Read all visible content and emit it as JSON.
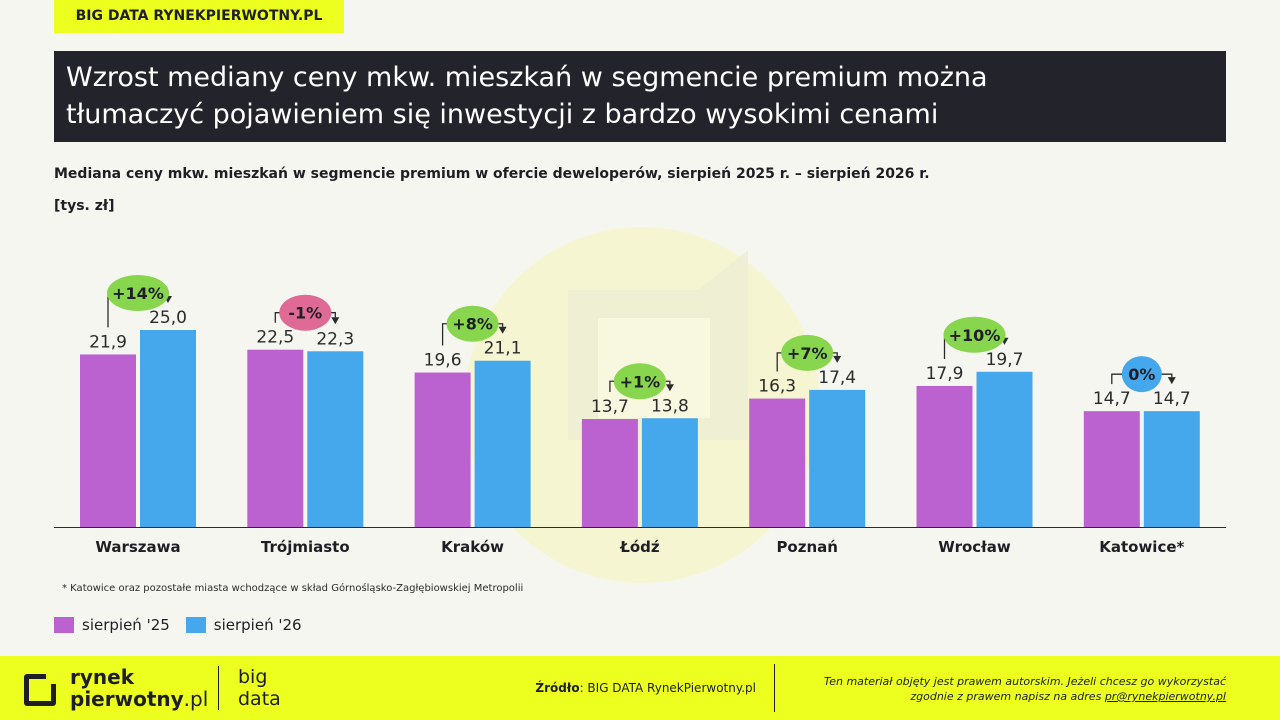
{
  "header": {
    "badge": "BIG DATA RYNEKPIERWOTNY.PL",
    "title_line1": "Wzrost mediany ceny mkw. mieszkań w segmencie premium można",
    "title_line2": "tłumaczyć pojawieniem się inwestycji z bardzo wysokimi cenami"
  },
  "chart_data": {
    "type": "bar",
    "title": "Mediana ceny mkw. mieszkań w segmencie premium w ofercie deweloperów, sierpień 2025 r. – sierpień 2026 r.",
    "unit": "[tys. zł]",
    "categories": [
      "Warszawa",
      "Trójmiasto",
      "Kraków",
      "Łódź",
      "Poznań",
      "Wrocław",
      "Katowice*"
    ],
    "series": [
      {
        "name": "sierpień '25",
        "values": [
          21.9,
          22.5,
          19.6,
          13.7,
          16.3,
          17.9,
          14.7
        ],
        "labels": [
          "21,9",
          "22,5",
          "19,6",
          "13,7",
          "16,3",
          "17,9",
          "14,7"
        ],
        "color": "#bc61d0"
      },
      {
        "name": "sierpień '26",
        "values": [
          25.0,
          22.3,
          21.1,
          13.8,
          17.4,
          19.7,
          14.7
        ],
        "labels": [
          "25,0",
          "22,3",
          "21,1",
          "13,8",
          "17,4",
          "19,7",
          "14,7"
        ],
        "color": "#45a8ec"
      }
    ],
    "changes": [
      {
        "label": "+14%",
        "type": "up"
      },
      {
        "label": "-1%",
        "type": "down"
      },
      {
        "label": "+8%",
        "type": "up"
      },
      {
        "label": "+1%",
        "type": "up"
      },
      {
        "label": "+7%",
        "type": "up"
      },
      {
        "label": "+10%",
        "type": "up"
      },
      {
        "label": "0%",
        "type": "flat"
      }
    ],
    "change_colors": {
      "up": "#88d64d",
      "down": "#de6a95",
      "flat": "#45a8ec"
    },
    "ylim": [
      0,
      25
    ],
    "footnote": "* Katowice oraz pozostałe miasta wchodzące w skład Górnośląsko-Zagłębiowskiej Metropolii"
  },
  "footer": {
    "logo_line1": "rynek",
    "logo_line2_main": "pierwotny",
    "logo_line2_suffix": ".pl",
    "logo_big_line1": "big",
    "logo_big_line2": "data",
    "source_label": "Źródło",
    "source_text": ": BIG DATA RynekPierwotny.pl",
    "copyright_line1": "Ten materiał objęty jest prawem autorskim. Jeżeli chcesz go wykorzystać",
    "copyright_line2": "zgodnie z prawem napisz na adres ",
    "copyright_email": "pr@rynekpierwotny.pl"
  }
}
